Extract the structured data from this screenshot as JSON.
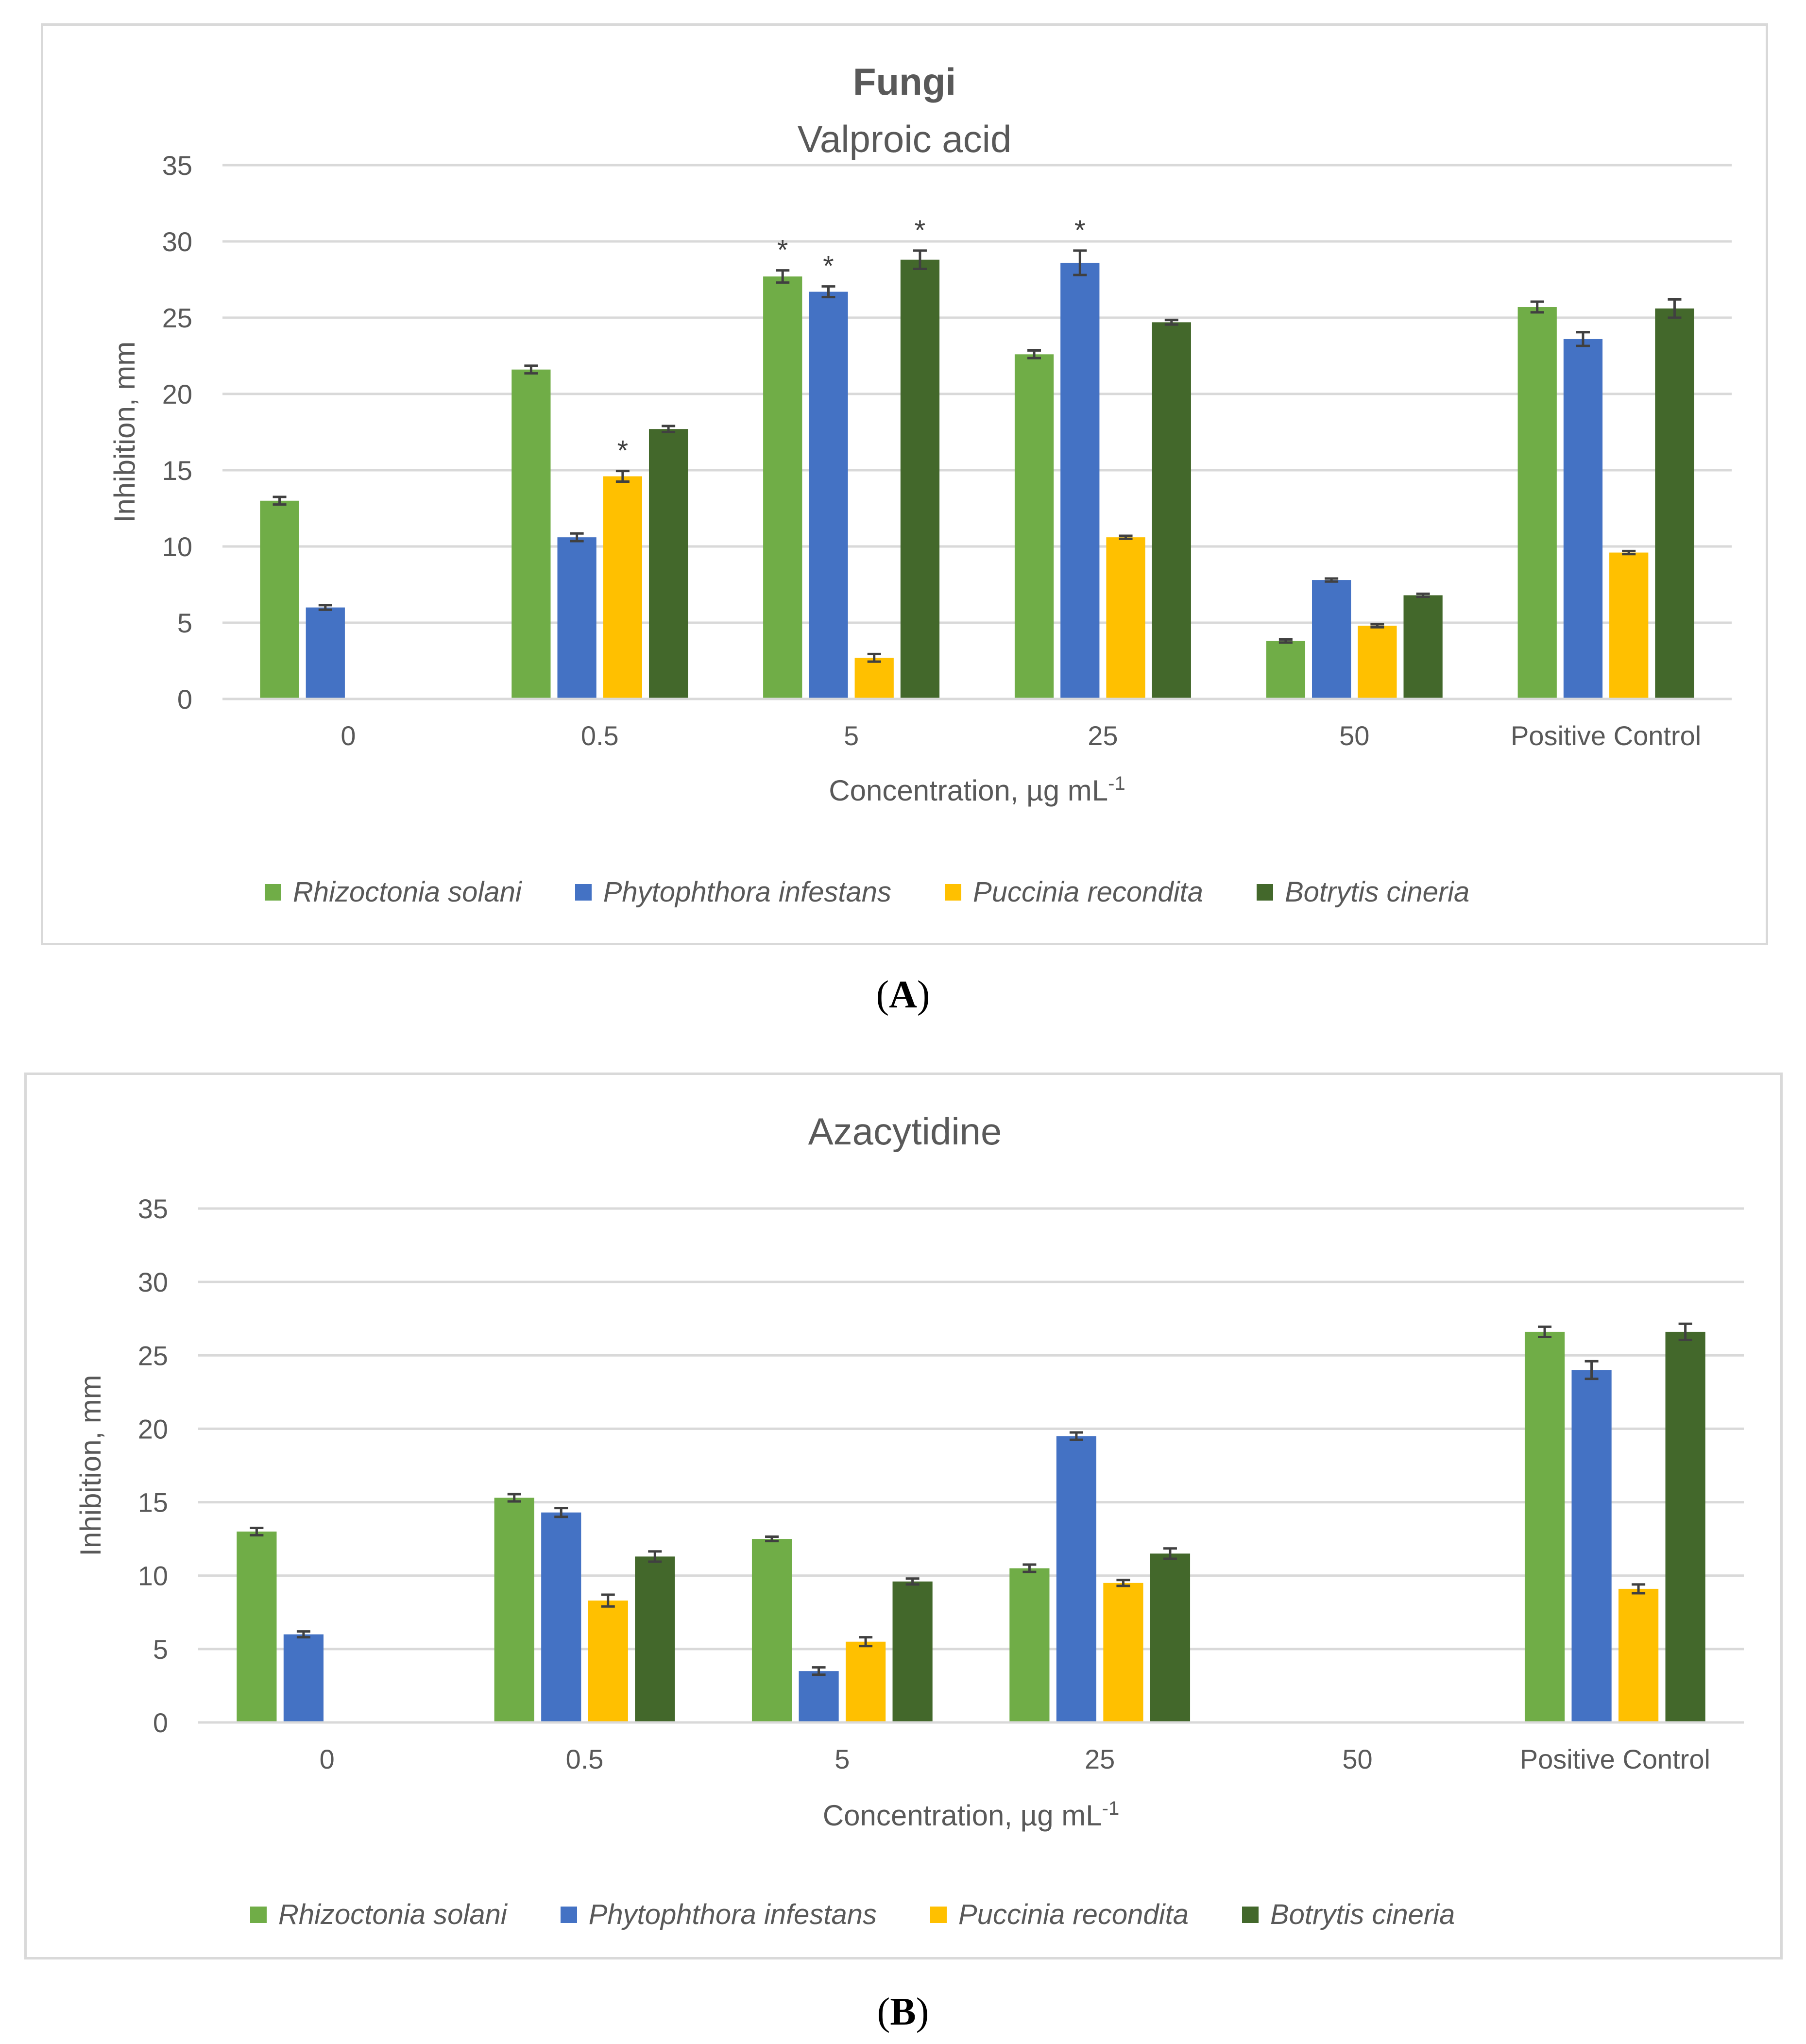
{
  "chart_data": [
    {
      "type": "bar",
      "suptitle": "Fungi",
      "title": "Valproic acid",
      "panel": "A",
      "xlabel": "Concentration, µg mL",
      "xlabel_sup": "-1",
      "ylabel": "Inhibition, mm",
      "ylim": [
        0,
        35
      ],
      "yticks": [
        "0",
        "5",
        "10",
        "15",
        "20",
        "25",
        "30",
        "35"
      ],
      "categories": [
        "0",
        "0.5",
        "5",
        "25",
        "50",
        "Positive Control"
      ],
      "series": [
        {
          "name": "Rhizoctonia solani",
          "color": "#70ad47",
          "values": [
            13,
            21.6,
            27.7,
            22.6,
            3.8,
            25.7
          ],
          "errors": [
            0.25,
            0.25,
            0.4,
            0.25,
            0.1,
            0.35
          ]
        },
        {
          "name": "Phytophthora infestans",
          "color": "#4472c4",
          "values": [
            6,
            10.6,
            26.7,
            28.6,
            7.8,
            23.6
          ],
          "errors": [
            0.15,
            0.25,
            0.35,
            0.8,
            0.1,
            0.45
          ]
        },
        {
          "name": "Puccinia recondita",
          "color": "#ffc000",
          "values": [
            null,
            14.6,
            2.7,
            10.6,
            null,
            9.6
          ],
          "errors": [
            null,
            0.35,
            0.25,
            0.1,
            null,
            0.1
          ],
          "hidden_values": [
            null,
            null,
            null,
            null,
            4.8,
            null
          ]
        },
        {
          "name": "Botrytis cineria",
          "color": "#43682b",
          "values": [
            null,
            17.7,
            28.8,
            24.7,
            6.8,
            25.6
          ],
          "errors": [
            null,
            0.2,
            0.6,
            0.15,
            0.1,
            0.6
          ]
        }
      ],
      "extra_bars": [
        {
          "category": "50",
          "series": "Puccinia recondita",
          "value": 4.8,
          "error": 0.1
        }
      ],
      "significance": [
        {
          "category": "5",
          "series": "Rhizoctonia solani",
          "label": "*"
        },
        {
          "category": "5",
          "series": "Phytophthora infestans",
          "label": "*"
        },
        {
          "category": "5",
          "series": "Botrytis cineria",
          "label": "*"
        },
        {
          "category": "25",
          "series": "Phytophthora infestans",
          "label": "*"
        },
        {
          "category": "0.5",
          "series": "Puccinia recondita",
          "label": "*"
        }
      ],
      "legend": "bottom"
    },
    {
      "type": "bar",
      "suptitle": "",
      "title": "Azacytidine",
      "panel": "B",
      "xlabel": "Concentration, µg mL",
      "xlabel_sup": "-1",
      "ylabel": "Inhibition, mm",
      "ylim": [
        0,
        35
      ],
      "yticks": [
        "0",
        "5",
        "10",
        "15",
        "20",
        "25",
        "30",
        "35"
      ],
      "categories": [
        "0",
        "0.5",
        "5",
        "25",
        "50",
        "Positive Control"
      ],
      "series": [
        {
          "name": "Rhizoctonia solani",
          "color": "#70ad47",
          "values": [
            13,
            15.3,
            12.5,
            10.5,
            null,
            26.6
          ],
          "errors": [
            0.25,
            0.25,
            0.15,
            0.25,
            null,
            0.35
          ]
        },
        {
          "name": "Phytophthora infestans",
          "color": "#4472c4",
          "values": [
            6,
            14.3,
            3.5,
            19.5,
            null,
            24
          ],
          "errors": [
            0.2,
            0.3,
            0.25,
            0.25,
            null,
            0.6
          ]
        },
        {
          "name": "Puccinia recondita",
          "color": "#ffc000",
          "values": [
            null,
            8.3,
            5.5,
            9.5,
            null,
            9.1
          ],
          "errors": [
            null,
            0.4,
            0.3,
            0.2,
            null,
            0.3
          ]
        },
        {
          "name": "Botrytis cineria",
          "color": "#43682b",
          "values": [
            null,
            11.3,
            9.6,
            11.5,
            null,
            26.6
          ],
          "errors": [
            null,
            0.35,
            0.2,
            0.35,
            null,
            0.55
          ]
        }
      ],
      "legend": "bottom"
    }
  ],
  "panel_labels": {
    "a": "A",
    "b": "B"
  }
}
